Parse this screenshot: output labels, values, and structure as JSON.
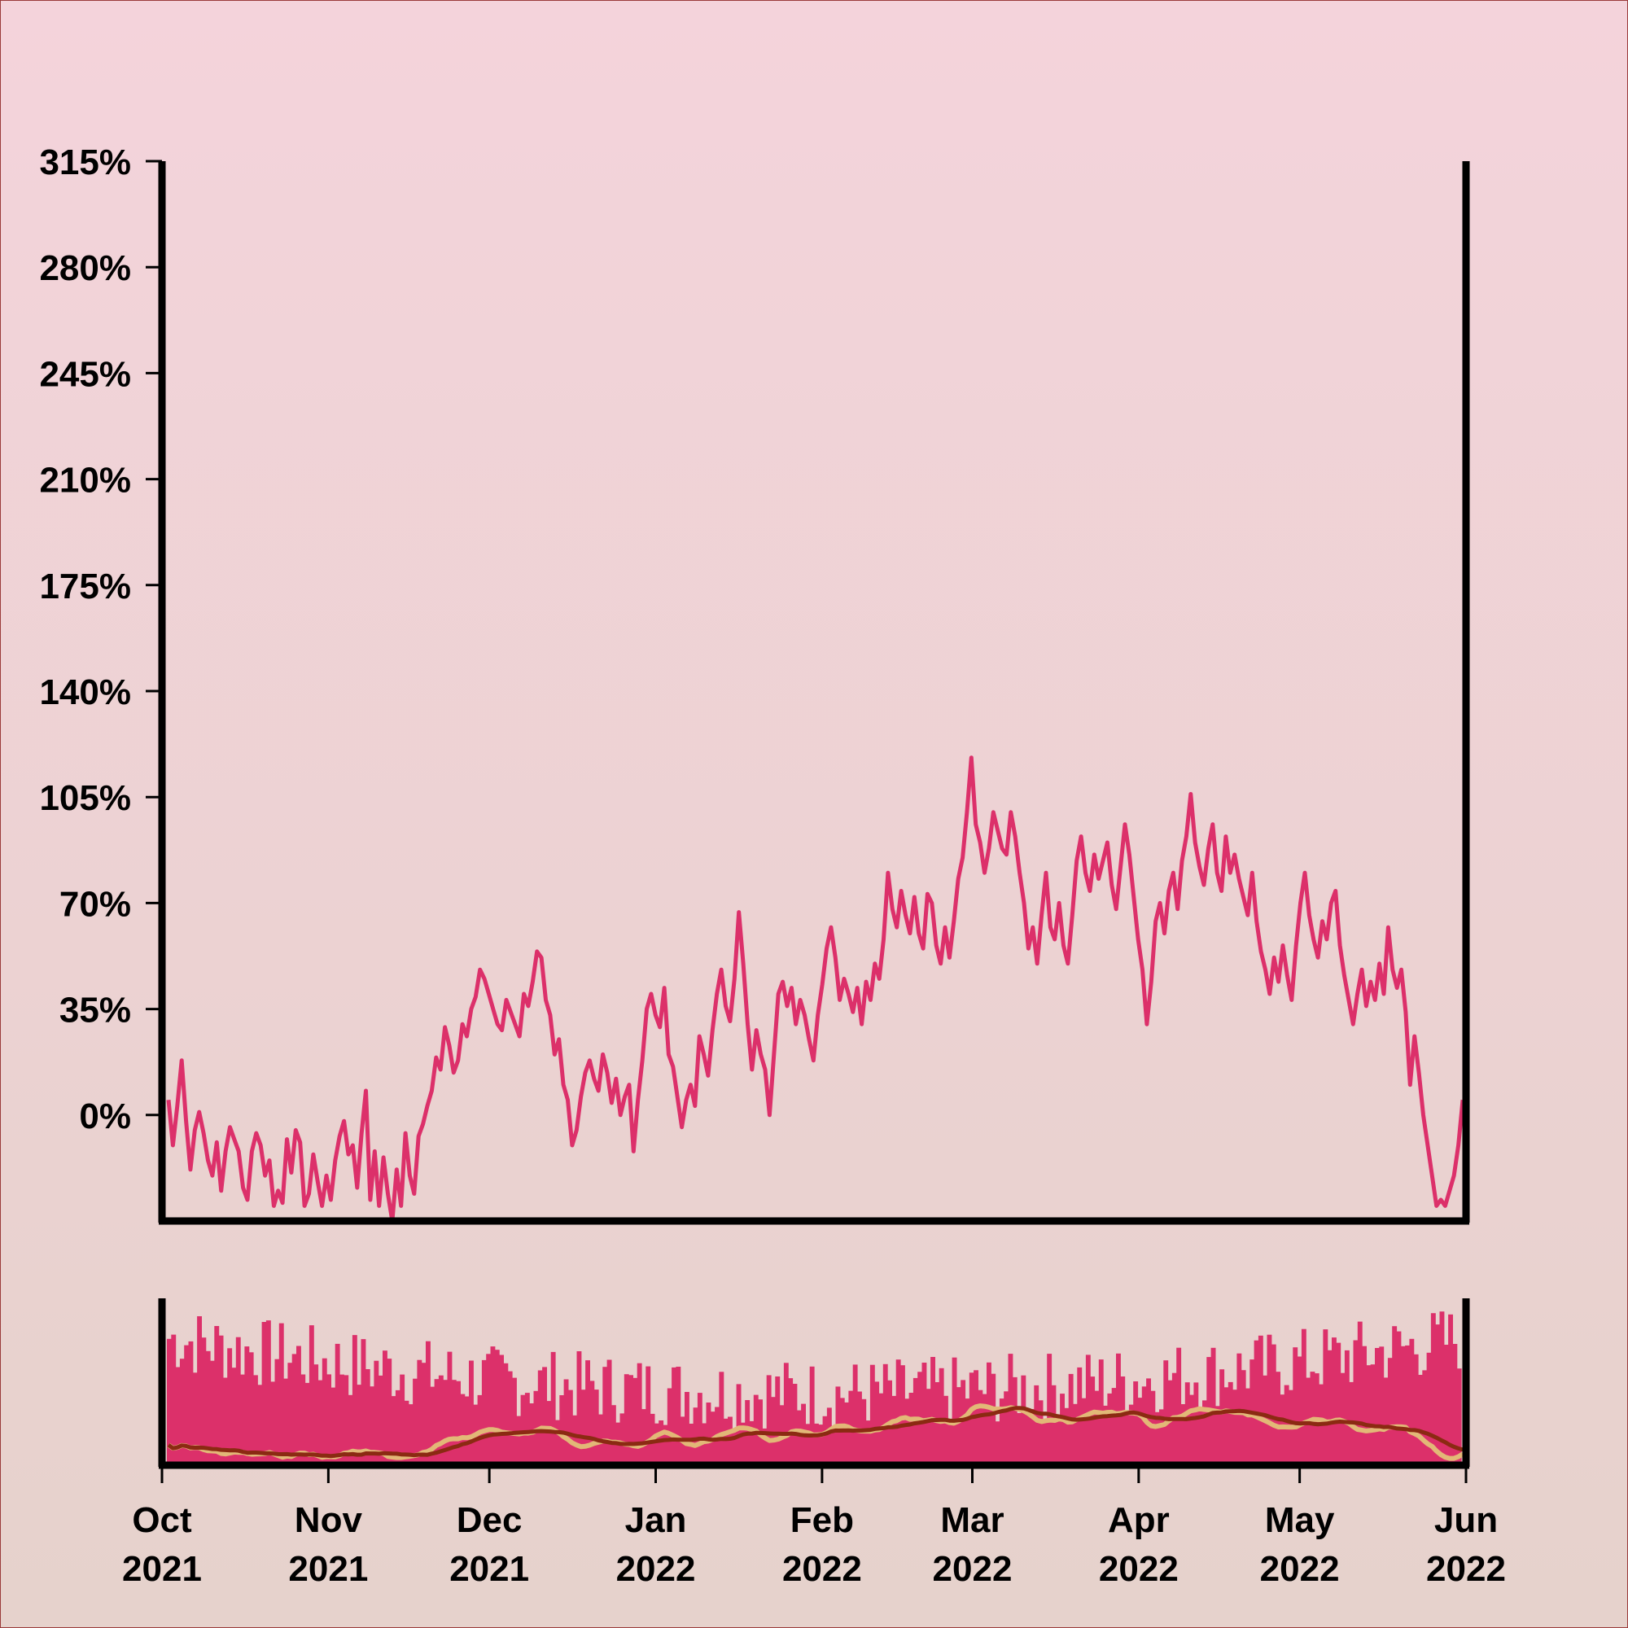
{
  "colors": {
    "price_line": "#dc306a",
    "volume_bars": "#dc306a",
    "ma_fast": "#e2b877",
    "ma_slow": "#8b2a12",
    "axis": "#000000"
  },
  "chart_data": [
    {
      "type": "line",
      "series": [
        {
          "values": [
            5,
            -10,
            3,
            18,
            -2,
            -18,
            -5,
            1,
            -6,
            -15,
            -20,
            -9,
            -25,
            -12,
            -4,
            -8,
            -12,
            -24,
            -28,
            -12,
            -6,
            -10,
            -20,
            -15,
            -30,
            -25,
            -29,
            -8,
            -19,
            -5,
            -9,
            -30,
            -26,
            -13,
            -22,
            -30,
            -20,
            -28,
            -15,
            -7,
            -2,
            -13,
            -10,
            -24,
            -6,
            8,
            -28,
            -12,
            -30,
            -14,
            -26,
            -35,
            -18,
            -30,
            -6,
            -20,
            -26,
            -7,
            -3,
            3,
            8,
            19,
            15,
            29,
            23,
            14,
            18,
            30,
            26,
            35,
            39,
            48,
            45,
            40,
            35,
            30,
            28,
            38,
            34,
            30,
            26,
            40,
            36,
            44,
            54,
            52,
            38,
            33,
            20,
            25,
            10,
            5,
            -10,
            -5,
            6,
            14,
            18,
            12,
            8,
            20,
            14,
            4,
            12,
            0,
            6,
            10,
            -12,
            5,
            18,
            35,
            40,
            33,
            29,
            42,
            20,
            16,
            6,
            -4,
            5,
            10,
            3,
            26,
            20,
            13,
            28,
            40,
            48,
            36,
            31,
            45,
            67,
            50,
            30,
            15,
            28,
            20,
            15,
            0,
            20,
            40,
            44,
            36,
            42,
            30,
            38,
            33,
            25,
            18,
            33,
            43,
            55,
            62,
            52,
            38,
            45,
            40,
            34,
            42,
            30,
            44,
            38,
            50,
            45,
            58,
            80,
            68,
            62,
            74,
            66,
            60,
            72,
            60,
            55,
            73,
            70,
            56,
            50,
            62,
            52,
            64,
            78,
            85,
            100,
            118,
            96,
            90,
            80,
            88,
            100,
            94,
            88,
            86,
            100,
            92,
            80,
            70,
            55,
            62,
            50,
            66,
            80,
            62,
            58,
            70,
            56,
            50,
            66,
            84,
            92,
            80,
            74,
            86,
            78,
            84,
            90,
            76,
            68,
            82,
            96,
            86,
            72,
            58,
            48,
            30,
            44,
            64,
            70,
            60,
            74,
            80,
            68,
            84,
            92,
            106,
            90,
            82,
            76,
            88,
            96,
            80,
            74,
            92,
            80,
            86,
            78,
            72,
            66,
            80,
            64,
            54,
            48,
            40,
            52,
            44,
            56,
            46,
            38,
            56,
            70,
            80,
            66,
            58,
            52,
            64,
            58,
            70,
            74,
            56,
            46,
            38,
            30,
            40,
            48,
            36,
            44,
            38,
            50,
            40,
            62,
            48,
            42,
            48,
            34,
            10,
            26,
            14,
            0,
            -10,
            -20,
            -30,
            -28,
            -30,
            -25,
            -20,
            -10,
            5
          ]
        }
      ],
      "x_range": [
        "2021-10-01",
        "2022-06-01"
      ],
      "x_ticks": [
        {
          "month": "Oct",
          "year": "2021",
          "date": "2021-10-01"
        },
        {
          "month": "Nov",
          "year": "2021",
          "date": "2021-11-01"
        },
        {
          "month": "Dec",
          "year": "2021",
          "date": "2021-12-01"
        },
        {
          "month": "Jan",
          "year": "2022",
          "date": "2022-01-01"
        },
        {
          "month": "Feb",
          "year": "2022",
          "date": "2022-02-01"
        },
        {
          "month": "Mar",
          "year": "2022",
          "date": "2022-03-01"
        },
        {
          "month": "Apr",
          "year": "2022",
          "date": "2022-04-01"
        },
        {
          "month": "May",
          "year": "2022",
          "date": "2022-05-01"
        },
        {
          "month": "Jun",
          "year": "2022",
          "date": "2022-06-01"
        }
      ],
      "y_ticks": [
        0,
        35,
        70,
        105,
        140,
        175,
        210,
        245,
        280,
        315
      ],
      "y_tick_labels": [
        "0%",
        "35%",
        "70%",
        "105%",
        "140%",
        "175%",
        "210%",
        "245%",
        "280%",
        "315%"
      ],
      "ylim": [
        -35,
        315
      ],
      "grid": false
    },
    {
      "type": "bar",
      "series": [
        {
          "values": "volume"
        },
        {
          "values": "moving-average-fast"
        },
        {
          "values": "moving-average-slow"
        }
      ],
      "x_range": [
        "2021-10-01",
        "2022-06-01"
      ],
      "grid": false
    }
  ]
}
